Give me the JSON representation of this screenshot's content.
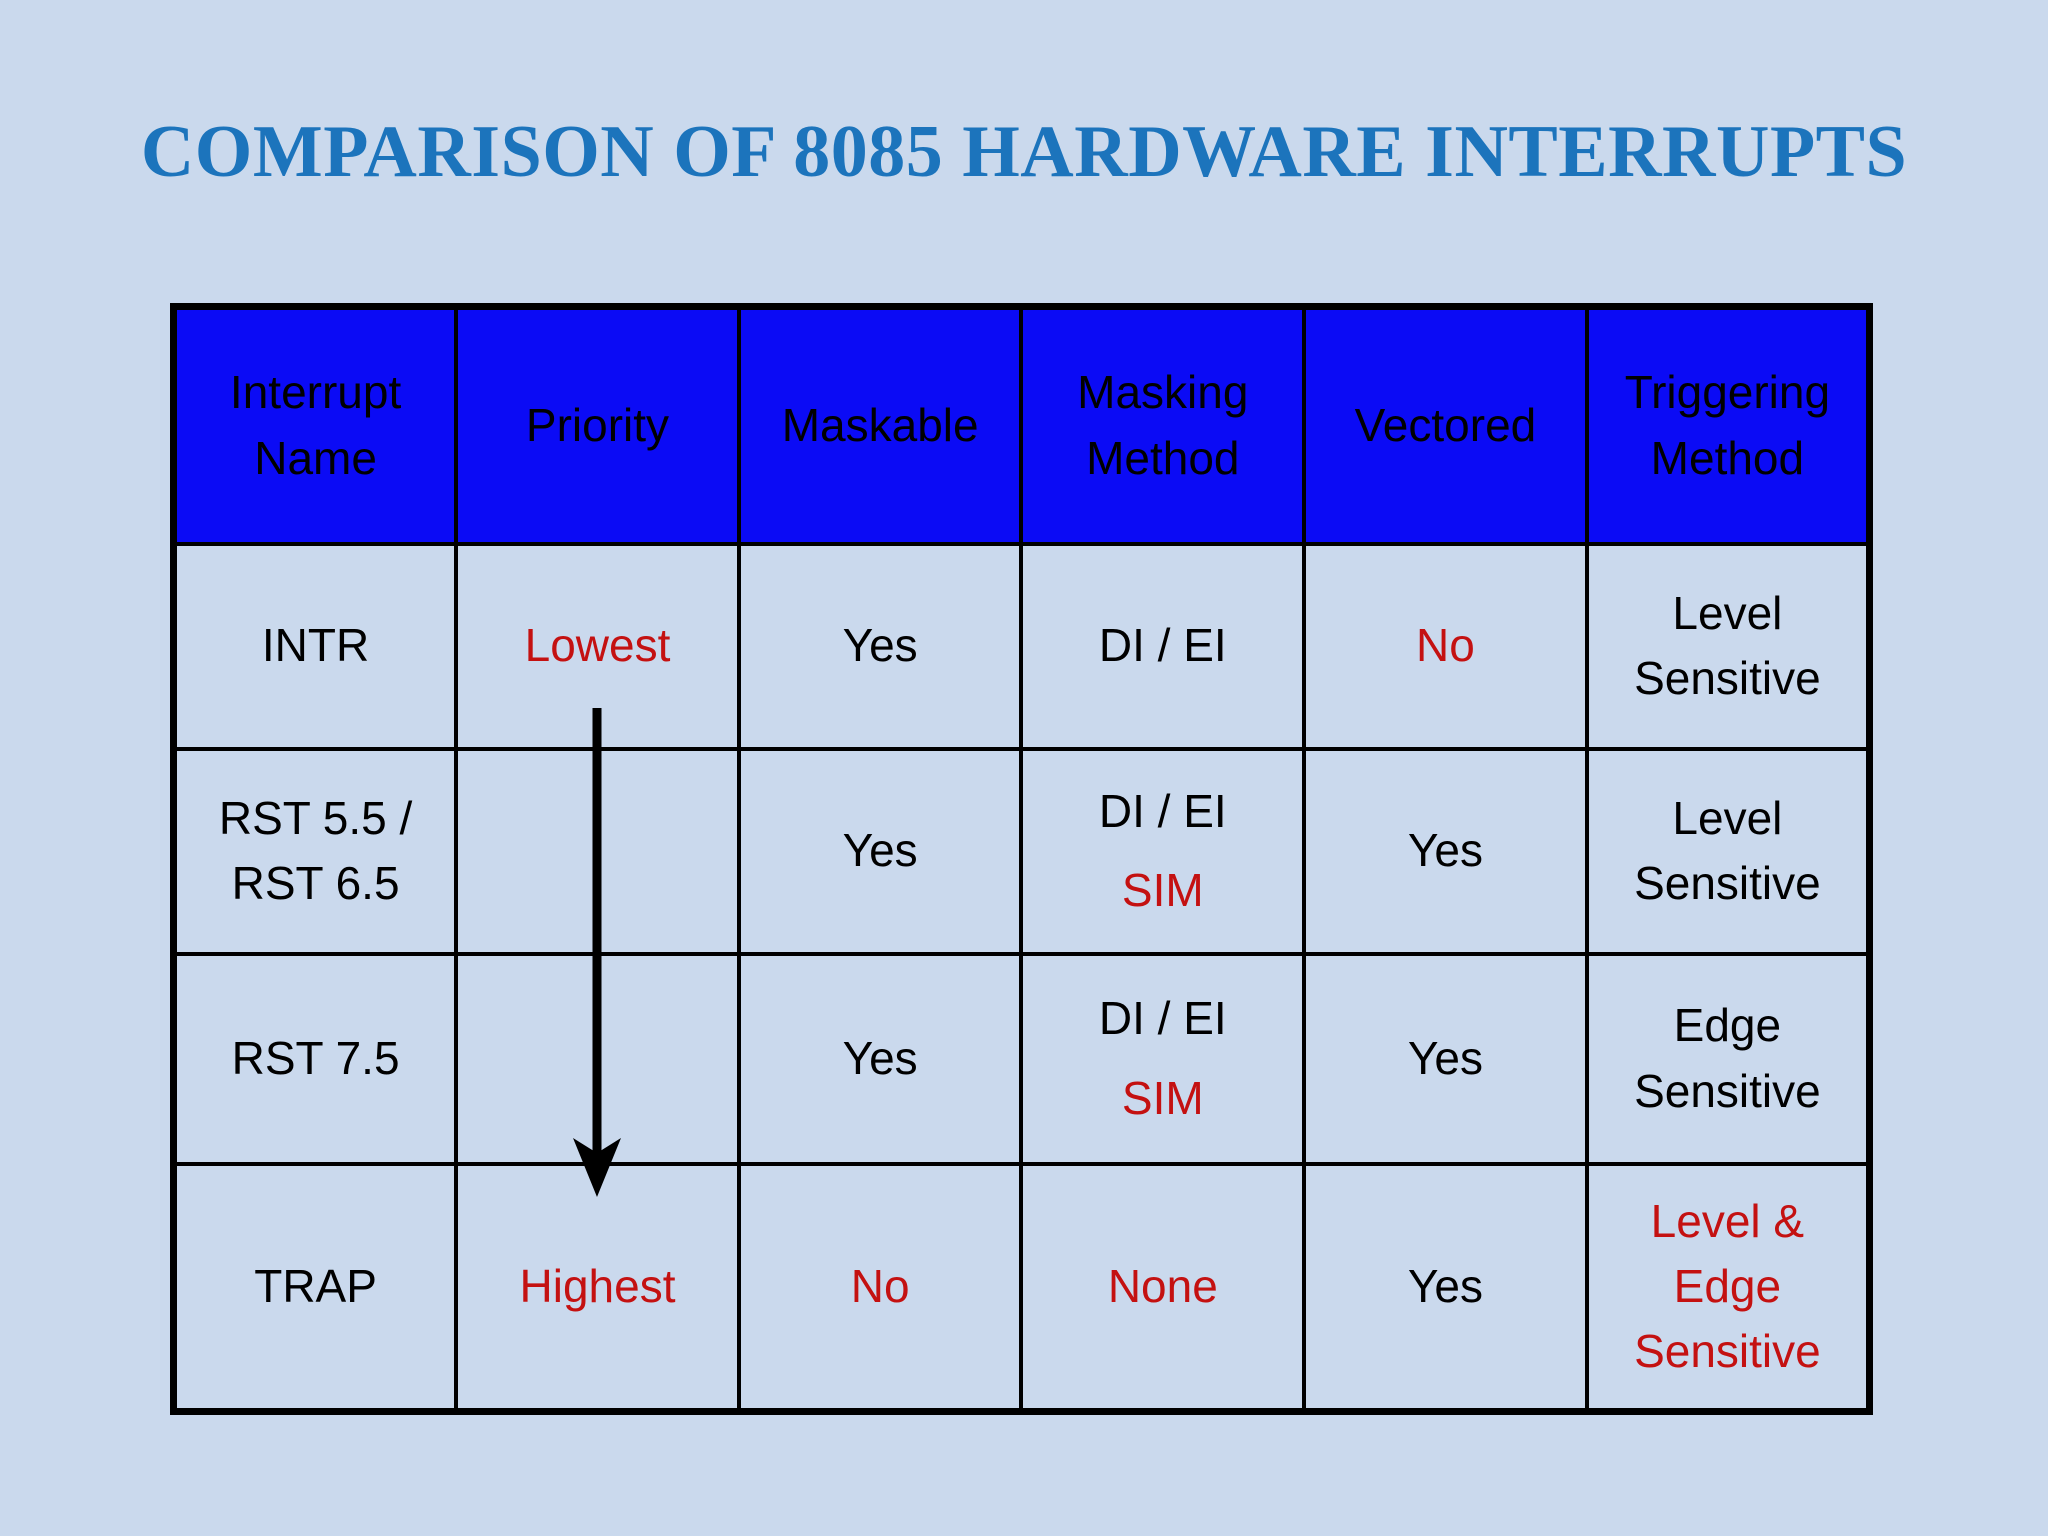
{
  "title": "COMPARISON OF 8085 HARDWARE INTERRUPTS",
  "colors": {
    "background": "#CAD9ED",
    "header_bg": "#0B0BF5",
    "red": "#C41111",
    "title_blue": "#1C74BC",
    "border": "#000000",
    "text": "#000000"
  },
  "priority_arrow": {
    "direction": "down",
    "column": "Priority",
    "from_label": "Lowest",
    "to_label": "Highest"
  },
  "table": {
    "headers": [
      {
        "name": "interrupt-name",
        "lines": [
          "Interrupt",
          "Name"
        ]
      },
      {
        "name": "priority",
        "lines": [
          "Priority"
        ]
      },
      {
        "name": "maskable",
        "lines": [
          "Maskable"
        ]
      },
      {
        "name": "masking-method",
        "lines": [
          "Masking",
          "Method"
        ]
      },
      {
        "name": "vectored",
        "lines": [
          "Vectored"
        ]
      },
      {
        "name": "triggering-method",
        "lines": [
          "Triggering",
          "Method"
        ]
      }
    ],
    "rows": [
      {
        "name": "intr",
        "cells": [
          {
            "lines": [
              {
                "text": "INTR"
              }
            ]
          },
          {
            "lines": [
              {
                "text": "Lowest",
                "color": "red"
              }
            ]
          },
          {
            "lines": [
              {
                "text": "Yes"
              }
            ]
          },
          {
            "lines": [
              {
                "text": "DI / EI"
              }
            ]
          },
          {
            "lines": [
              {
                "text": "No",
                "color": "red"
              }
            ]
          },
          {
            "lines": [
              {
                "text": "Level"
              },
              {
                "text": "Sensitive"
              }
            ]
          }
        ]
      },
      {
        "name": "rst55-rst65",
        "cells": [
          {
            "lines": [
              {
                "text": "RST 5.5 /"
              },
              {
                "text": "RST 6.5"
              }
            ]
          },
          {
            "lines": []
          },
          {
            "lines": [
              {
                "text": "Yes"
              }
            ]
          },
          {
            "lines": [
              {
                "text": "DI / EI"
              },
              {
                "text": "SIM",
                "color": "red",
                "gap": true
              }
            ]
          },
          {
            "lines": [
              {
                "text": "Yes"
              }
            ]
          },
          {
            "lines": [
              {
                "text": "Level"
              },
              {
                "text": "Sensitive"
              }
            ]
          }
        ]
      },
      {
        "name": "rst75",
        "cells": [
          {
            "lines": [
              {
                "text": "RST 7.5"
              }
            ]
          },
          {
            "lines": []
          },
          {
            "lines": [
              {
                "text": "Yes"
              }
            ]
          },
          {
            "lines": [
              {
                "text": "DI / EI"
              },
              {
                "text": "SIM",
                "color": "red",
                "gap": true
              }
            ]
          },
          {
            "lines": [
              {
                "text": "Yes"
              }
            ]
          },
          {
            "lines": [
              {
                "text": "Edge"
              },
              {
                "text": "Sensitive"
              }
            ]
          }
        ]
      },
      {
        "name": "trap",
        "cells": [
          {
            "lines": [
              {
                "text": "TRAP"
              }
            ]
          },
          {
            "lines": [
              {
                "text": "Highest",
                "color": "red"
              }
            ]
          },
          {
            "lines": [
              {
                "text": "No",
                "color": "red"
              }
            ]
          },
          {
            "lines": [
              {
                "text": "None",
                "color": "red"
              }
            ]
          },
          {
            "lines": [
              {
                "text": "Yes"
              }
            ]
          },
          {
            "lines": [
              {
                "text": "Level &",
                "color": "red"
              },
              {
                "text": "Edge",
                "color": "red"
              },
              {
                "text": "Sensitive",
                "color": "red"
              }
            ]
          }
        ]
      }
    ]
  }
}
